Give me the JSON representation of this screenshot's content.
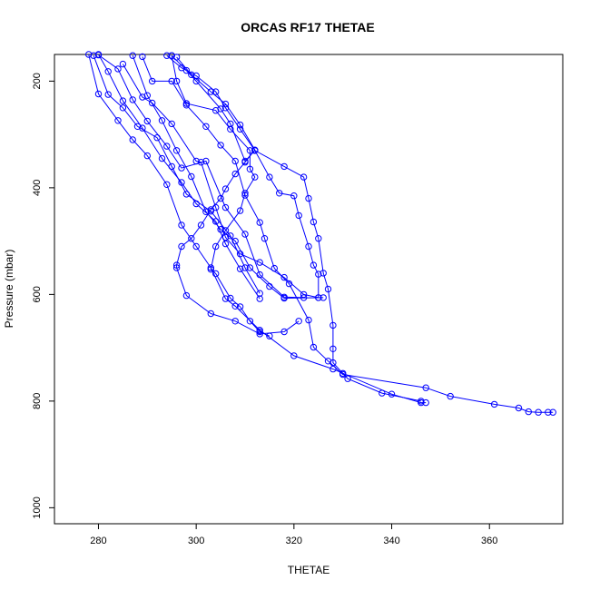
{
  "chart_data": {
    "type": "line",
    "title": "ORCAS RF17 THETAE",
    "xlabel": "THETAE",
    "ylabel": "Pressure (mbar)",
    "xlim": [
      271,
      375
    ],
    "ylim": [
      1030,
      150
    ],
    "y_reversed": true,
    "x_ticks": [
      280,
      300,
      320,
      340,
      360
    ],
    "y_ticks": [
      200,
      400,
      600,
      800,
      1000
    ],
    "grid": false,
    "legend": "none",
    "color": "#0000ff",
    "series": [
      {
        "points": [
          [
            280,
            150
          ],
          [
            282,
            182
          ],
          [
            285,
            237
          ],
          [
            289,
            288
          ],
          [
            293,
            345
          ],
          [
            297,
            390
          ],
          [
            300,
            430
          ],
          [
            304,
            463
          ],
          [
            306,
            505
          ],
          [
            309,
            552
          ],
          [
            313,
            608
          ]
        ]
      },
      {
        "points": [
          [
            279,
            152
          ],
          [
            282,
            225
          ],
          [
            285,
            250
          ],
          [
            288,
            285
          ],
          [
            292,
            306
          ],
          [
            295,
            360
          ],
          [
            298,
            412
          ],
          [
            303,
            444
          ],
          [
            307,
            490
          ],
          [
            310,
            550
          ],
          [
            313,
            598
          ]
        ]
      },
      {
        "points": [
          [
            280,
            151
          ],
          [
            284,
            177
          ],
          [
            287,
            235
          ],
          [
            290,
            275
          ],
          [
            294,
            322
          ],
          [
            297,
            363
          ],
          [
            302,
            350
          ],
          [
            306,
            437
          ],
          [
            310,
            487
          ],
          [
            313,
            563
          ],
          [
            318,
            605
          ],
          [
            322,
            606
          ]
        ]
      },
      {
        "points": [
          [
            278,
            150
          ],
          [
            280,
            224
          ],
          [
            284,
            274
          ],
          [
            287,
            310
          ],
          [
            290,
            340
          ],
          [
            294,
            394
          ],
          [
            297,
            470
          ],
          [
            300,
            510
          ],
          [
            303,
            550
          ],
          [
            306,
            608
          ],
          [
            308,
            622
          ],
          [
            313,
            667
          ],
          [
            320,
            715
          ],
          [
            328,
            740
          ],
          [
            340,
            787
          ],
          [
            346,
            803
          ],
          [
            347,
            803
          ]
        ]
      },
      {
        "points": [
          [
            285,
            168
          ],
          [
            289,
            230
          ],
          [
            291,
            241
          ],
          [
            295,
            280
          ],
          [
            300,
            350
          ],
          [
            301,
            352
          ],
          [
            304,
            437
          ],
          [
            306,
            493
          ],
          [
            309,
            524
          ],
          [
            313,
            540
          ],
          [
            318,
            568
          ],
          [
            322,
            600
          ],
          [
            325,
            606
          ]
        ]
      },
      {
        "points": [
          [
            287,
            152
          ],
          [
            290,
            227
          ],
          [
            293,
            274
          ],
          [
            296,
            330
          ],
          [
            299,
            379
          ],
          [
            302,
            445
          ],
          [
            305,
            478
          ],
          [
            308,
            500
          ],
          [
            311,
            550
          ],
          [
            315,
            585
          ],
          [
            318,
            607
          ],
          [
            326,
            606
          ]
        ]
      },
      {
        "points": [
          [
            289,
            154
          ],
          [
            291,
            200
          ],
          [
            295,
            200
          ],
          [
            298,
            245
          ],
          [
            302,
            285
          ],
          [
            305,
            320
          ],
          [
            308,
            350
          ],
          [
            310,
            414
          ],
          [
            313,
            465
          ],
          [
            314,
            495
          ],
          [
            316,
            551
          ],
          [
            319,
            580
          ],
          [
            323,
            648
          ],
          [
            324,
            699
          ],
          [
            327,
            725
          ],
          [
            330,
            750
          ],
          [
            347,
            775
          ],
          [
            352,
            791
          ],
          [
            361,
            806
          ],
          [
            366,
            813
          ],
          [
            368,
            820
          ],
          [
            370,
            821
          ],
          [
            372,
            821
          ],
          [
            373,
            821
          ]
        ]
      },
      {
        "points": [
          [
            295,
            152
          ],
          [
            298,
            180
          ],
          [
            300,
            200
          ],
          [
            305,
            252
          ],
          [
            307,
            280
          ],
          [
            310,
            350
          ],
          [
            312,
            330
          ],
          [
            315,
            380
          ],
          [
            317,
            410
          ],
          [
            320,
            415
          ],
          [
            321,
            452
          ],
          [
            323,
            510
          ],
          [
            324,
            545
          ],
          [
            325,
            562
          ],
          [
            325,
            606
          ]
        ]
      },
      {
        "points": [
          [
            294,
            152
          ],
          [
            297,
            175
          ],
          [
            300,
            190
          ],
          [
            304,
            220
          ],
          [
            306,
            250
          ],
          [
            309,
            290
          ],
          [
            312,
            330
          ],
          [
            318,
            360
          ],
          [
            322,
            380
          ],
          [
            323,
            420
          ],
          [
            324,
            464
          ],
          [
            325,
            495
          ],
          [
            326,
            560
          ],
          [
            327,
            590
          ],
          [
            328,
            658
          ],
          [
            328,
            702
          ],
          [
            328,
            728
          ],
          [
            330,
            748
          ],
          [
            331,
            758
          ],
          [
            338,
            785
          ],
          [
            346,
            800
          ]
        ]
      },
      {
        "points": [
          [
            295,
            152
          ],
          [
            296,
            200
          ],
          [
            298,
            242
          ],
          [
            304,
            255
          ],
          [
            307,
            290
          ],
          [
            311,
            330
          ],
          [
            311,
            365
          ],
          [
            312,
            380
          ],
          [
            310,
            410
          ],
          [
            309,
            443
          ],
          [
            306,
            480
          ],
          [
            304,
            510
          ],
          [
            303,
            553
          ],
          [
            304,
            561
          ],
          [
            307,
            607
          ],
          [
            309,
            623
          ],
          [
            311,
            650
          ],
          [
            313,
            670
          ],
          [
            315,
            678
          ]
        ]
      },
      {
        "points": [
          [
            296,
            155
          ],
          [
            299,
            188
          ],
          [
            303,
            220
          ],
          [
            306,
            243
          ],
          [
            309,
            282
          ],
          [
            312,
            329
          ],
          [
            310,
            352
          ],
          [
            308,
            374
          ],
          [
            306,
            402
          ],
          [
            305,
            420
          ],
          [
            303,
            441
          ],
          [
            301,
            470
          ],
          [
            299,
            495
          ],
          [
            297,
            510
          ],
          [
            296,
            545
          ],
          [
            296,
            550
          ],
          [
            298,
            602
          ],
          [
            303,
            636
          ],
          [
            308,
            650
          ],
          [
            313,
            674
          ],
          [
            318,
            670
          ],
          [
            321,
            650
          ]
        ]
      }
    ]
  }
}
